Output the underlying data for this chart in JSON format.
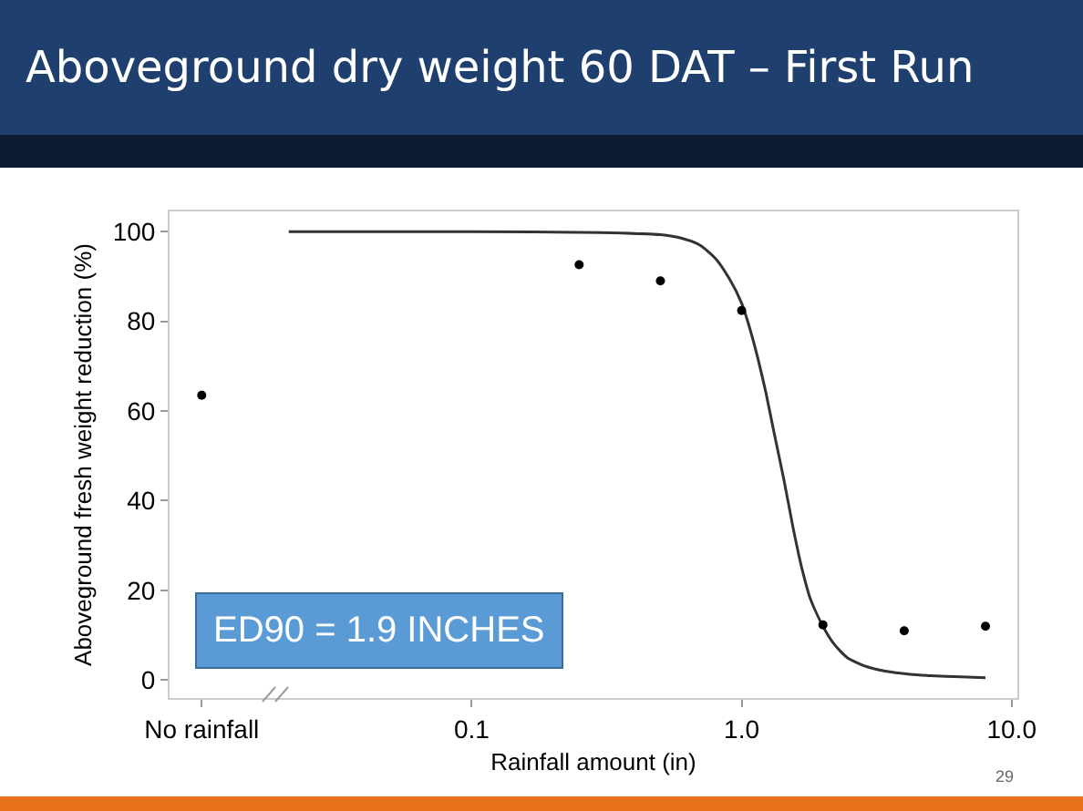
{
  "chart_data": {
    "type": "scatter",
    "title": "Aboveground dry weight 60 DAT – First Run",
    "xlabel": "Rainfall amount (in)",
    "ylabel": "Aboveground fresh weight reduction (%)",
    "series": [
      {
        "marker": "circle",
        "color": "#000000",
        "x": [
          0.01,
          0.25,
          0.5,
          1.0,
          2.0,
          4.0,
          8.0
        ],
        "values": [
          63.5,
          92.6,
          89,
          82.4,
          12.3,
          11,
          12
        ]
      },
      {
        "type": "line",
        "marker": "none",
        "color": "#333333",
        "x": [
          0.021,
          0.1,
          0.3,
          0.5,
          0.6,
          0.7,
          0.8,
          0.9,
          1.0,
          1.1,
          1.22,
          1.32,
          1.43,
          1.55,
          1.67,
          1.8,
          2.0,
          2.2,
          2.46,
          2.9,
          3.4,
          4.2,
          5,
          6.5,
          8
        ],
        "values": [
          100,
          100,
          99.8,
          99.3,
          98.5,
          97,
          94,
          89.5,
          84,
          76,
          65,
          55,
          45,
          34,
          25,
          18,
          12,
          8,
          5,
          3,
          2,
          1.3,
          1,
          0.7,
          0.5
        ]
      }
    ],
    "xlim": [
      0.0076,
      10.5
    ],
    "xticks": [
      {
        "value": 0.01,
        "label": "No rainfall"
      },
      0.1,
      {
        "value": 1,
        "label": "1.0"
      },
      {
        "value": 10,
        "label": "10.0"
      }
    ],
    "ylim": [
      -4,
      104.5
    ],
    "yticks": [
      0,
      20,
      40,
      60,
      80,
      100
    ],
    "log": "x",
    "grid": false,
    "line_style": "solid",
    "annotations": [
      "ED90 = 1.9 INCHES",
      "29"
    ]
  }
}
